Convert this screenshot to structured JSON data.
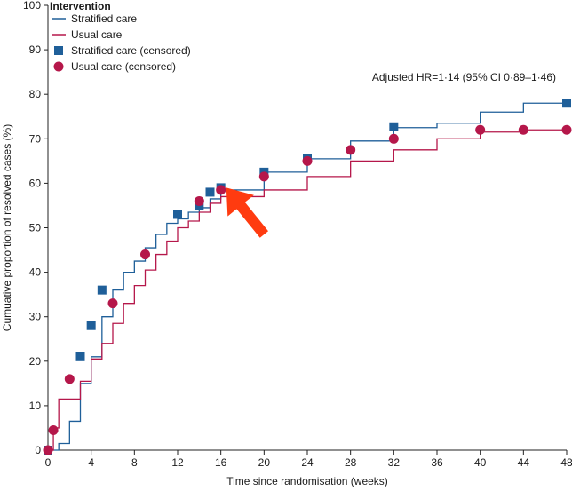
{
  "chart_data": {
    "type": "line",
    "step": true,
    "xlabel": "Time since randomisation (weeks)",
    "ylabel": "Cumuative proportion of resolved cases (%)",
    "xlim": [
      0,
      48
    ],
    "ylim": [
      0,
      100
    ],
    "xticks": [
      0,
      4,
      8,
      12,
      16,
      20,
      24,
      28,
      32,
      36,
      40,
      44,
      48
    ],
    "yticks": [
      0,
      10,
      20,
      30,
      40,
      50,
      60,
      70,
      80,
      90,
      100
    ],
    "grid": false,
    "legend": {
      "title": "Intervention",
      "position": "top-left",
      "entries": [
        "Stratified care",
        "Usual care",
        "Stratified care (censored)",
        "Usual care (censored)"
      ]
    },
    "annotation": "Adjusted HR=1·14 (95% CI 0·89–1·46)",
    "series": [
      {
        "name": "Stratified care",
        "color": "#1f5f99",
        "steps": [
          [
            0,
            0
          ],
          [
            1,
            1.5
          ],
          [
            2,
            6.5
          ],
          [
            3,
            15
          ],
          [
            4,
            21
          ],
          [
            5,
            30
          ],
          [
            6,
            36
          ],
          [
            7,
            40
          ],
          [
            8,
            42.5
          ],
          [
            9,
            45.5
          ],
          [
            10,
            48.5
          ],
          [
            11,
            51
          ],
          [
            12,
            52
          ],
          [
            13,
            53.5
          ],
          [
            14,
            54.5
          ],
          [
            15,
            56.5
          ],
          [
            16,
            58.5
          ],
          [
            20,
            62.5
          ],
          [
            24,
            65.5
          ],
          [
            28,
            69.5
          ],
          [
            32,
            72.5
          ],
          [
            36,
            73.5
          ],
          [
            40,
            76
          ],
          [
            44,
            78
          ],
          [
            48,
            78
          ]
        ],
        "censored_marker": "square",
        "censored": [
          [
            0,
            0
          ],
          [
            3,
            21
          ],
          [
            4,
            28
          ],
          [
            5,
            36
          ],
          [
            12,
            53
          ],
          [
            14,
            55
          ],
          [
            15,
            58
          ],
          [
            16,
            59
          ],
          [
            20,
            62.5
          ],
          [
            24,
            65.5
          ],
          [
            32,
            72.7
          ],
          [
            48,
            78
          ]
        ]
      },
      {
        "name": "Usual care",
        "color": "#b5174a",
        "steps": [
          [
            0,
            0
          ],
          [
            0.5,
            5
          ],
          [
            1,
            11.5
          ],
          [
            3,
            15.5
          ],
          [
            4,
            20.5
          ],
          [
            5,
            24
          ],
          [
            6,
            28.5
          ],
          [
            7,
            33
          ],
          [
            8,
            37
          ],
          [
            9,
            40.5
          ],
          [
            10,
            44
          ],
          [
            11,
            47
          ],
          [
            12,
            50
          ],
          [
            13,
            51.5
          ],
          [
            14,
            53.5
          ],
          [
            15,
            55.5
          ],
          [
            16,
            57
          ],
          [
            20,
            58.5
          ],
          [
            24,
            61.5
          ],
          [
            28,
            65
          ],
          [
            32,
            67.5
          ],
          [
            36,
            70
          ],
          [
            40,
            71.5
          ],
          [
            44,
            72
          ],
          [
            48,
            72
          ]
        ],
        "censored_marker": "circle",
        "censored": [
          [
            0,
            0
          ],
          [
            0.5,
            4.5
          ],
          [
            2,
            16
          ],
          [
            6,
            33
          ],
          [
            9,
            44
          ],
          [
            14,
            56
          ],
          [
            16,
            58.5
          ],
          [
            20,
            61.5
          ],
          [
            24,
            65
          ],
          [
            28,
            67.5
          ],
          [
            32,
            70
          ],
          [
            40,
            72
          ],
          [
            44,
            72
          ],
          [
            48,
            72
          ]
        ]
      }
    ],
    "arrow": {
      "color": "#ff3b10",
      "direction": "pointing up-left",
      "tip": [
        16.5,
        59
      ],
      "tail": [
        20,
        48.5
      ]
    }
  }
}
